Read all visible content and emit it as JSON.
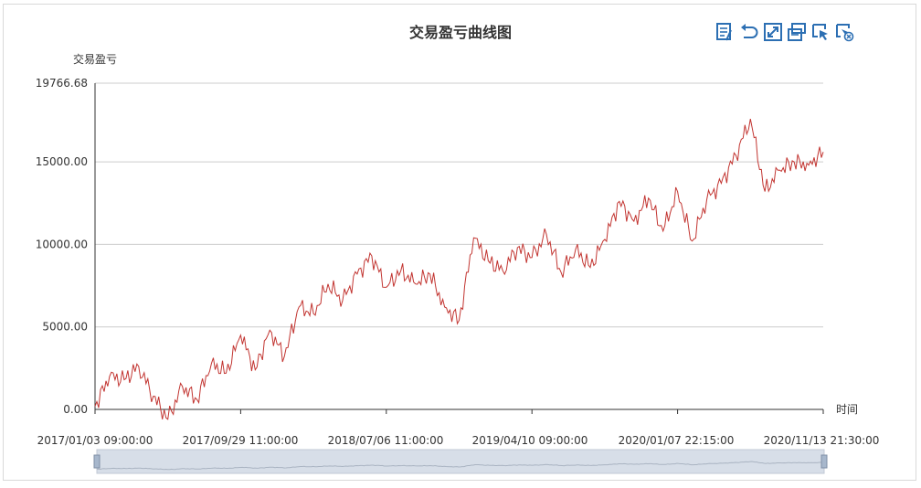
{
  "chart_data": {
    "type": "line",
    "title": "交易盈亏曲线图",
    "ylabel": "交易盈亏",
    "xlabel": "时间",
    "ylim": [
      0,
      19766.68
    ],
    "yticks": [
      "0.00",
      "5000.00",
      "10000.00",
      "15000.00",
      "19766.68"
    ],
    "yticks_values": [
      0,
      5000,
      10000,
      15000,
      19766.68
    ],
    "xticks": [
      "2017/01/03 09:00:00",
      "2017/09/29 11:00:00",
      "2018/07/06 11:00:00",
      "2019/04/10 09:00:00",
      "2020/01/07 22:15:00",
      "2020/11/13 21:30:00"
    ],
    "grid": true,
    "series_color": "#c23531",
    "series": [
      {
        "name": "交易盈亏",
        "x_index": [
          0,
          2,
          4,
          6,
          8,
          10,
          12,
          14,
          16,
          18,
          20,
          22,
          24,
          26,
          28,
          30,
          32,
          34,
          36,
          38,
          40,
          42,
          44,
          46,
          48,
          50,
          52,
          54,
          56,
          58,
          60,
          62,
          64,
          66,
          68,
          70,
          72,
          74,
          76,
          78,
          80,
          82,
          84,
          86,
          88,
          90,
          92,
          94,
          96,
          98,
          100
        ],
        "values": [
          200,
          2000,
          1800,
          2600,
          800,
          -600,
          1400,
          600,
          2800,
          2200,
          4500,
          2400,
          4800,
          3200,
          6200,
          5800,
          7600,
          6600,
          8200,
          9300,
          7400,
          8400,
          7600,
          8200,
          6200,
          5400,
          10400,
          9000,
          8400,
          9800,
          9200,
          10600,
          8300,
          9700,
          8600,
          10300,
          12600,
          11400,
          12800,
          10800,
          13200,
          10200,
          12700,
          13700,
          15400,
          17600,
          13200,
          14500,
          15000,
          14800,
          15600
        ]
      }
    ]
  },
  "toolbox": {
    "icons": [
      "data-view-icon",
      "restore-icon",
      "fullscreen-icon",
      "print-icon",
      "select-icon",
      "clear-select-icon"
    ],
    "color": "#2c6fb3"
  },
  "datazoom": {
    "range_start_percent": 0,
    "range_end_percent": 100
  }
}
